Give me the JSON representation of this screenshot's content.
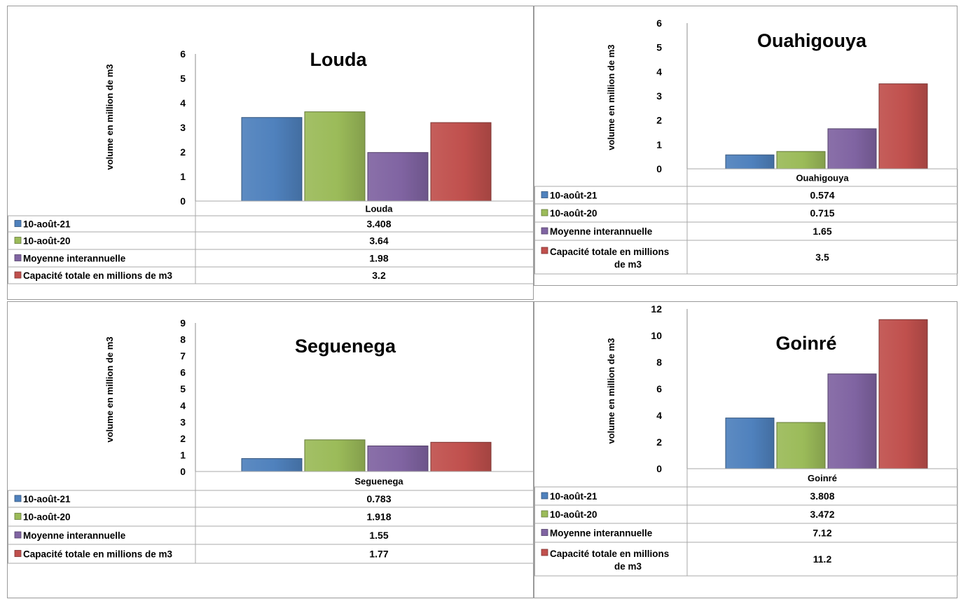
{
  "colors": {
    "series_1": "#4f81bd",
    "series_2": "#9bbb59",
    "series_3": "#8064a2",
    "series_4": "#c0504d"
  },
  "chart_data": [
    {
      "type": "bar",
      "title": "Louda",
      "ylabel": "volume en million de m3",
      "categories": [
        "Louda"
      ],
      "ylim": [
        0,
        6
      ],
      "yticks": [
        0,
        1,
        2,
        3,
        4,
        5,
        6
      ],
      "legend": "data-table",
      "series": [
        {
          "name": "10-août-21",
          "values": [
            3.408
          ],
          "label": "3.408"
        },
        {
          "name": "10-août-20",
          "values": [
            3.64
          ],
          "label": "3.64"
        },
        {
          "name": "Moyenne interannuelle",
          "values": [
            1.98
          ],
          "label": "1.98"
        },
        {
          "name": "Capacité totale en millions de m3",
          "values": [
            3.2
          ],
          "label": "3.2"
        }
      ]
    },
    {
      "type": "bar",
      "title": "Ouahigouya",
      "ylabel": "volume en million de m3",
      "categories": [
        "Ouahigouya"
      ],
      "ylim": [
        0,
        6
      ],
      "yticks": [
        0,
        1,
        2,
        3,
        4,
        5,
        6
      ],
      "legend": "data-table",
      "series": [
        {
          "name": "10-août-21",
          "values": [
            0.574
          ],
          "label": "0.574"
        },
        {
          "name": "10-août-20",
          "values": [
            0.715
          ],
          "label": "0.715"
        },
        {
          "name": "Moyenne interannuelle",
          "values": [
            1.65
          ],
          "label": "1.65"
        },
        {
          "name": "Capacité totale en millions de m3",
          "values": [
            3.5
          ],
          "label": "3.5"
        }
      ]
    },
    {
      "type": "bar",
      "title": "Seguenega",
      "ylabel": "volume en million de m3",
      "categories": [
        "Seguenega"
      ],
      "ylim": [
        0,
        9
      ],
      "yticks": [
        0,
        1,
        2,
        3,
        4,
        5,
        6,
        7,
        8,
        9
      ],
      "legend": "data-table",
      "series": [
        {
          "name": "10-août-21",
          "values": [
            0.783
          ],
          "label": "0.783"
        },
        {
          "name": "10-août-20",
          "values": [
            1.918
          ],
          "label": "1.918"
        },
        {
          "name": "Moyenne interannuelle",
          "values": [
            1.55
          ],
          "label": "1.55"
        },
        {
          "name": "Capacité totale en millions de m3",
          "values": [
            1.77
          ],
          "label": "1.77"
        }
      ]
    },
    {
      "type": "bar",
      "title": "Goinré",
      "ylabel": "volume en million de m3",
      "categories": [
        "Goinré"
      ],
      "ylim": [
        0,
        12
      ],
      "yticks": [
        0,
        2,
        4,
        6,
        8,
        10,
        12
      ],
      "legend": "data-table",
      "series": [
        {
          "name": "10-août-21",
          "values": [
            3.808
          ],
          "label": "3.808"
        },
        {
          "name": "10-août-20",
          "values": [
            3.472
          ],
          "label": "3.472"
        },
        {
          "name": "Moyenne interannuelle",
          "values": [
            7.12
          ],
          "label": "7.12"
        },
        {
          "name": "Capacité totale en millions de m3",
          "values": [
            11.2
          ],
          "label": "11.2"
        }
      ]
    }
  ]
}
